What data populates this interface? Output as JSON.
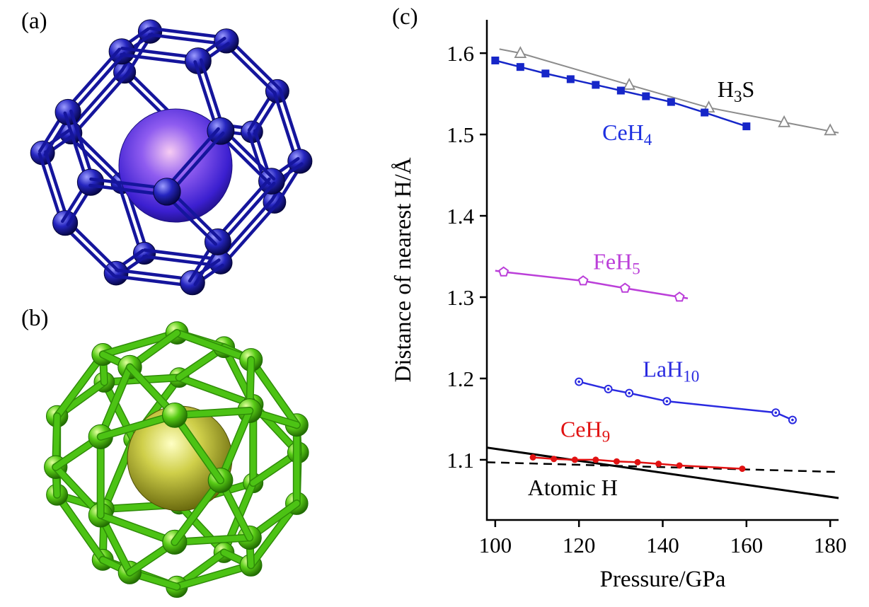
{
  "figure": {
    "background_color": "#ffffff",
    "panels": {
      "a": {
        "label": "(a)",
        "content": "ball-and-stick hydrogen cage (dark blue) enclosing one large central atom (blue-violet with pink highlight)"
      },
      "b": {
        "label": "(b)",
        "content": "ball-and-stick hydrogen cage (bright green) enclosing one large central atom (olive-yellow)"
      },
      "c": {
        "label": "(c)",
        "content": "line chart of H-H distance versus pressure"
      }
    },
    "colors": {
      "cage_a_bond": "#15159c",
      "cage_a_atom_stroke": "#05053a",
      "cage_b_bond": "#4cc314",
      "cage_b_bond_edge": "#2f8c08",
      "cage_b_atom_stroke": "#1d6e00"
    }
  },
  "chart_data": {
    "type": "line",
    "title": "",
    "xlabel": "Pressure/GPa",
    "ylabel": "Distance of nearest H/Å",
    "xlim": [
      98,
      182
    ],
    "ylim": [
      1.026,
      1.641
    ],
    "xticks": [
      "100",
      "120",
      "140",
      "160",
      "180"
    ],
    "yticks": [
      "1.1",
      "1.2",
      "1.3",
      "1.4",
      "1.5",
      "1.6"
    ],
    "grid": false,
    "legend_position": "inline labels next to curves",
    "series": [
      {
        "name": "H3S",
        "color": "#8c8c8c",
        "marker": "triangle-open",
        "marker_size": 14,
        "line_width": 2,
        "points": [
          [
            106,
            1.6
          ],
          [
            132,
            1.561
          ],
          [
            151,
            1.533
          ],
          [
            169,
            1.515
          ],
          [
            180,
            1.505
          ]
        ],
        "line_points": [
          [
            101,
            1.605
          ],
          [
            106,
            1.6
          ],
          [
            132,
            1.561
          ],
          [
            151,
            1.533
          ],
          [
            169,
            1.515
          ],
          [
            182,
            1.502
          ]
        ]
      },
      {
        "name": "CeH4",
        "color": "#1626c8",
        "marker": "square-filled",
        "marker_size": 11,
        "line_width": 2.5,
        "points": [
          [
            100,
            1.591
          ],
          [
            106,
            1.583
          ],
          [
            112,
            1.575
          ],
          [
            118,
            1.568
          ],
          [
            124,
            1.561
          ],
          [
            130,
            1.554
          ],
          [
            136,
            1.547
          ],
          [
            142,
            1.54
          ],
          [
            150,
            1.527
          ],
          [
            160,
            1.51
          ]
        ]
      },
      {
        "name": "FeH5",
        "color": "#bb3fd9",
        "marker": "pentagon-open",
        "marker_size": 12,
        "line_width": 2.5,
        "points": [
          [
            102,
            1.331
          ],
          [
            121,
            1.32
          ],
          [
            131,
            1.311
          ],
          [
            144,
            1.3
          ]
        ],
        "line_points": [
          [
            100,
            1.3325
          ],
          [
            102,
            1.331
          ],
          [
            121,
            1.32
          ],
          [
            131,
            1.311
          ],
          [
            146,
            1.2985
          ]
        ]
      },
      {
        "name": "LaH10",
        "color": "#2a2ae0",
        "marker": "circle-dot",
        "marker_size": 10,
        "line_width": 2.5,
        "points": [
          [
            120,
            1.196
          ],
          [
            127,
            1.187
          ],
          [
            132,
            1.182
          ],
          [
            141,
            1.172
          ],
          [
            167,
            1.158
          ],
          [
            171,
            1.149
          ]
        ]
      },
      {
        "name": "AtomicH",
        "color": "#000000",
        "marker": "none",
        "line_width": 3,
        "line_points": [
          [
            98,
            1.115
          ],
          [
            182,
            1.053
          ]
        ]
      },
      {
        "name": "dashed-reference",
        "color": "#000000",
        "marker": "none",
        "line_width": 2.5,
        "dash": "12 8",
        "line_points": [
          [
            98,
            1.097
          ],
          [
            182,
            1.085
          ]
        ]
      },
      {
        "name": "CeH9",
        "color": "#e11212",
        "marker": "circle-filled",
        "marker_size": 9,
        "line_width": 2.5,
        "points": [
          [
            109,
            1.103
          ],
          [
            114,
            1.101
          ],
          [
            119,
            1.1
          ],
          [
            124,
            1.1
          ],
          [
            129,
            1.098
          ],
          [
            134,
            1.097
          ],
          [
            139,
            1.095
          ],
          [
            144,
            1.093
          ],
          [
            159,
            1.089
          ]
        ]
      }
    ],
    "annotations": [
      {
        "for": "H3S",
        "parts": [
          {
            "t": "H"
          },
          {
            "t": "3",
            "sub": true
          },
          {
            "t": "S"
          }
        ],
        "x": 157.5,
        "y": 1.556,
        "color": "#000000",
        "size": 32
      },
      {
        "for": "CeH4",
        "parts": [
          {
            "t": "CeH"
          },
          {
            "t": "4",
            "sub": true
          }
        ],
        "x": 131.5,
        "y": 1.503,
        "color": "#1d2fe0",
        "size": 32
      },
      {
        "for": "FeH5",
        "parts": [
          {
            "t": "FeH"
          },
          {
            "t": "5",
            "sub": true
          }
        ],
        "x": 129,
        "y": 1.344,
        "color": "#bb3fd9",
        "size": 32
      },
      {
        "for": "LaH10",
        "parts": [
          {
            "t": "LaH"
          },
          {
            "t": "10",
            "sub": true
          }
        ],
        "x": 142,
        "y": 1.212,
        "color": "#2a2ae0",
        "size": 32
      },
      {
        "for": "CeH9",
        "parts": [
          {
            "t": "CeH"
          },
          {
            "t": "9",
            "sub": true
          }
        ],
        "x": 121.5,
        "y": 1.138,
        "color": "#e11212",
        "size": 32
      },
      {
        "for": "AtomicH",
        "parts": [
          {
            "t": "Atomic H"
          }
        ],
        "x": 118.5,
        "y": 1.066,
        "color": "#000000",
        "size": 32
      }
    ]
  }
}
